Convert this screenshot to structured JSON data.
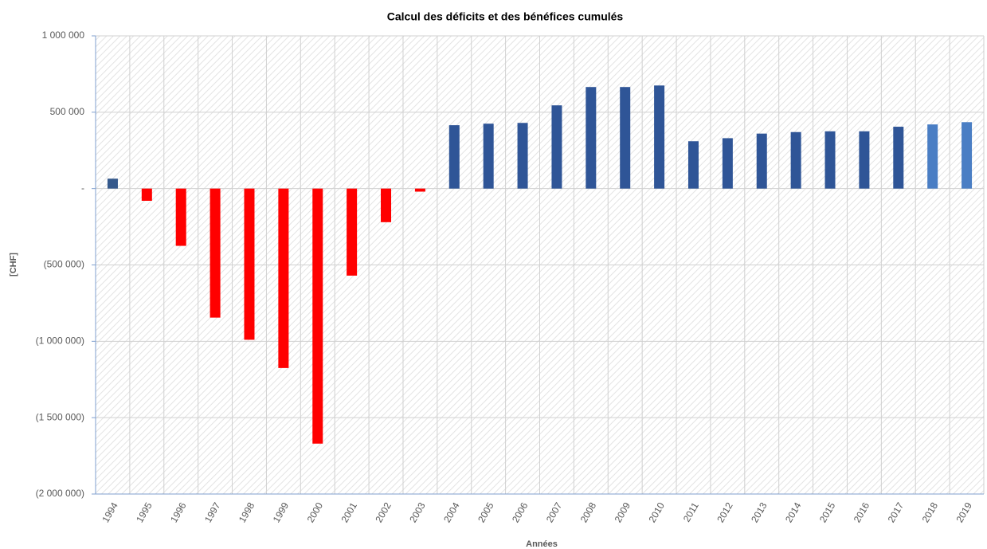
{
  "chart_data": {
    "type": "bar",
    "title": "Calcul des déficits et des bénéfices cumulés",
    "x_label": "Années",
    "y_label": "[CHF]",
    "categories": [
      "1994",
      "1995",
      "1996",
      "1997",
      "1998",
      "1999",
      "2000",
      "2001",
      "2002",
      "2003",
      "2004",
      "2005",
      "2006",
      "2007",
      "2008",
      "2009",
      "2010",
      "2011",
      "2012",
      "2013",
      "2014",
      "2015",
      "2016",
      "2017",
      "2018",
      "2019"
    ],
    "values": [
      65000,
      -80000,
      -375000,
      -845000,
      -990000,
      -1175000,
      -1670000,
      -570000,
      -220000,
      -20000,
      415000,
      425000,
      430000,
      545000,
      665000,
      665000,
      675000,
      310000,
      330000,
      360000,
      370000,
      375000,
      375000,
      405000,
      420000,
      435000
    ],
    "colors": [
      "#35598c",
      "#ff0000",
      "#ff0000",
      "#ff0000",
      "#ff0000",
      "#ff0000",
      "#ff0000",
      "#ff0000",
      "#ff0000",
      "#ff0000",
      "#2f5597",
      "#2f5597",
      "#2f5597",
      "#2f5597",
      "#2f5597",
      "#2f5597",
      "#2f5597",
      "#2f5597",
      "#2f5597",
      "#2f5597",
      "#2f5597",
      "#2f5597",
      "#2f5597",
      "#2f5597",
      "#4a7ec4",
      "#4a7ec4"
    ],
    "ylim": [
      -2000000,
      1000000
    ],
    "yticks": [
      {
        "value": 1000000,
        "label": "1 000 000"
      },
      {
        "value": 500000,
        "label": "500 000"
      },
      {
        "value": 0,
        "label": "-"
      },
      {
        "value": -500000,
        "label": "(500 000)"
      },
      {
        "value": -1000000,
        "label": "(1 000 000)"
      },
      {
        "value": -1500000,
        "label": "(1 500 000)"
      },
      {
        "value": -2000000,
        "label": "(2 000 000)"
      }
    ],
    "grid": true
  }
}
